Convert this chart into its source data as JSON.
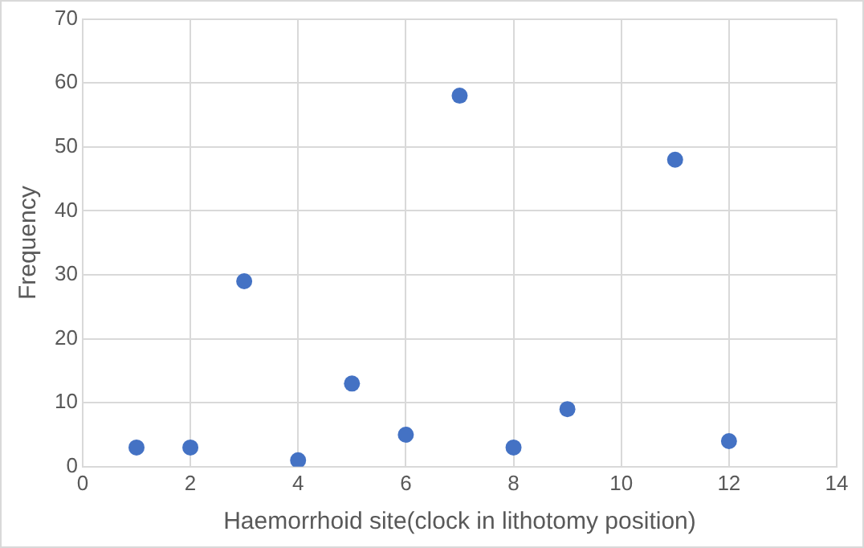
{
  "chart_data": {
    "type": "scatter",
    "xlabel": "Haemorrhoid site(clock in lithotomy position)",
    "ylabel": "Frequency",
    "x": [
      1,
      2,
      3,
      4,
      5,
      6,
      7,
      8,
      9,
      11,
      12
    ],
    "series": [
      {
        "color": "#4472c4",
        "values": [
          3,
          3,
          29,
          1,
          13,
          5,
          58,
          3,
          9,
          48,
          4
        ]
      }
    ],
    "xlim": [
      0,
      14
    ],
    "xticks": [
      0,
      2,
      4,
      6,
      8,
      10,
      12,
      14
    ],
    "ylim": [
      0,
      70
    ],
    "yticks": [
      0,
      10,
      20,
      30,
      40,
      50,
      60,
      70
    ],
    "grid": true,
    "marker": "circle"
  }
}
